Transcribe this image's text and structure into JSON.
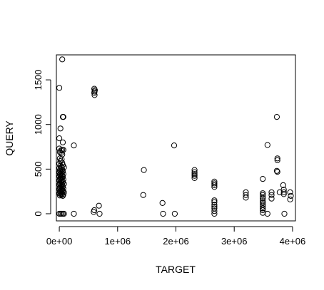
{
  "chart_data": {
    "type": "scatter",
    "title": "",
    "xlabel": "TARGET",
    "ylabel": "QUERY",
    "xlim": [
      -50000,
      4050000
    ],
    "ylim": [
      -80,
      1780
    ],
    "xticks": [
      {
        "value": 0,
        "label": "0e+00"
      },
      {
        "value": 1000000,
        "label": "1e+06"
      },
      {
        "value": 2000000,
        "label": "2e+06"
      },
      {
        "value": 3000000,
        "label": "3e+06"
      },
      {
        "value": 4000000,
        "label": "4e+06"
      }
    ],
    "yticks": [
      {
        "value": 0,
        "label": "0"
      },
      {
        "value": 500,
        "label": "500"
      },
      {
        "value": 1000,
        "label": "1000"
      },
      {
        "value": 1500,
        "label": "1500"
      }
    ],
    "grid": false,
    "legend": "none",
    "marker": "open-circle",
    "colors": {
      "marker": "#000000",
      "axes": "#000000",
      "background": "#ffffff"
    },
    "points": [
      [
        50000,
        1730
      ],
      [
        0,
        1410
      ],
      [
        60000,
        1085
      ],
      [
        70000,
        1085
      ],
      [
        20000,
        955
      ],
      [
        0,
        845
      ],
      [
        60000,
        800
      ],
      [
        0,
        730
      ],
      [
        50000,
        715
      ],
      [
        70000,
        715
      ],
      [
        30000,
        710
      ],
      [
        250000,
        765
      ],
      [
        10000,
        690
      ],
      [
        30000,
        680
      ],
      [
        50000,
        665
      ],
      [
        10000,
        620
      ],
      [
        40000,
        610
      ],
      [
        20000,
        590
      ],
      [
        50000,
        570
      ],
      [
        0,
        560
      ],
      [
        60000,
        545
      ],
      [
        20000,
        540
      ],
      [
        40000,
        525
      ],
      [
        80000,
        520
      ],
      [
        0,
        510
      ],
      [
        20000,
        500
      ],
      [
        50000,
        495
      ],
      [
        10000,
        485
      ],
      [
        30000,
        480
      ],
      [
        60000,
        475
      ],
      [
        0,
        465
      ],
      [
        40000,
        460
      ],
      [
        20000,
        450
      ],
      [
        70000,
        445
      ],
      [
        10000,
        440
      ],
      [
        50000,
        430
      ],
      [
        30000,
        425
      ],
      [
        0,
        420
      ],
      [
        60000,
        415
      ],
      [
        20000,
        405
      ],
      [
        40000,
        400
      ],
      [
        10000,
        390
      ],
      [
        70000,
        385
      ],
      [
        30000,
        380
      ],
      [
        0,
        375
      ],
      [
        50000,
        370
      ],
      [
        20000,
        360
      ],
      [
        60000,
        355
      ],
      [
        40000,
        350
      ],
      [
        10000,
        340
      ],
      [
        80000,
        335
      ],
      [
        30000,
        330
      ],
      [
        0,
        325
      ],
      [
        50000,
        320
      ],
      [
        20000,
        310
      ],
      [
        60000,
        305
      ],
      [
        40000,
        300
      ],
      [
        10000,
        290
      ],
      [
        70000,
        285
      ],
      [
        30000,
        280
      ],
      [
        0,
        275
      ],
      [
        50000,
        270
      ],
      [
        20000,
        260
      ],
      [
        60000,
        255
      ],
      [
        40000,
        250
      ],
      [
        10000,
        245
      ],
      [
        80000,
        240
      ],
      [
        30000,
        235
      ],
      [
        0,
        230
      ],
      [
        50000,
        225
      ],
      [
        20000,
        220
      ],
      [
        70000,
        215
      ],
      [
        40000,
        210
      ],
      [
        10000,
        205
      ],
      [
        60000,
        200
      ],
      [
        0,
        0
      ],
      [
        20000,
        0
      ],
      [
        40000,
        0
      ],
      [
        60000,
        0
      ],
      [
        80000,
        0
      ],
      [
        250000,
        0
      ],
      [
        600000,
        1400
      ],
      [
        610000,
        1385
      ],
      [
        605000,
        1370
      ],
      [
        600000,
        1355
      ],
      [
        605000,
        1330
      ],
      [
        590000,
        20
      ],
      [
        600000,
        40
      ],
      [
        680000,
        90
      ],
      [
        690000,
        0
      ],
      [
        1450000,
        490
      ],
      [
        1440000,
        210
      ],
      [
        1770000,
        120
      ],
      [
        1780000,
        0
      ],
      [
        1970000,
        765
      ],
      [
        1980000,
        0
      ],
      [
        2320000,
        490
      ],
      [
        2320000,
        465
      ],
      [
        2320000,
        445
      ],
      [
        2320000,
        425
      ],
      [
        2320000,
        400
      ],
      [
        2660000,
        360
      ],
      [
        2660000,
        340
      ],
      [
        2660000,
        320
      ],
      [
        2660000,
        300
      ],
      [
        2660000,
        150
      ],
      [
        2660000,
        130
      ],
      [
        2660000,
        100
      ],
      [
        2660000,
        80
      ],
      [
        2660000,
        60
      ],
      [
        2660000,
        30
      ],
      [
        2660000,
        0
      ],
      [
        3200000,
        240
      ],
      [
        3200000,
        210
      ],
      [
        3200000,
        180
      ],
      [
        3490000,
        390
      ],
      [
        3490000,
        230
      ],
      [
        3490000,
        210
      ],
      [
        3490000,
        190
      ],
      [
        3490000,
        170
      ],
      [
        3490000,
        140
      ],
      [
        3490000,
        120
      ],
      [
        3490000,
        100
      ],
      [
        3490000,
        80
      ],
      [
        3490000,
        60
      ],
      [
        3490000,
        40
      ],
      [
        3490000,
        10
      ],
      [
        3570000,
        770
      ],
      [
        3570000,
        0
      ],
      [
        3640000,
        240
      ],
      [
        3640000,
        210
      ],
      [
        3640000,
        170
      ],
      [
        3730000,
        1085
      ],
      [
        3740000,
        620
      ],
      [
        3740000,
        600
      ],
      [
        3730000,
        480
      ],
      [
        3740000,
        470
      ],
      [
        3780000,
        240
      ],
      [
        3840000,
        320
      ],
      [
        3850000,
        270
      ],
      [
        3850000,
        240
      ],
      [
        3850000,
        220
      ],
      [
        3860000,
        0
      ],
      [
        3960000,
        240
      ],
      [
        3970000,
        200
      ],
      [
        3960000,
        160
      ]
    ]
  }
}
